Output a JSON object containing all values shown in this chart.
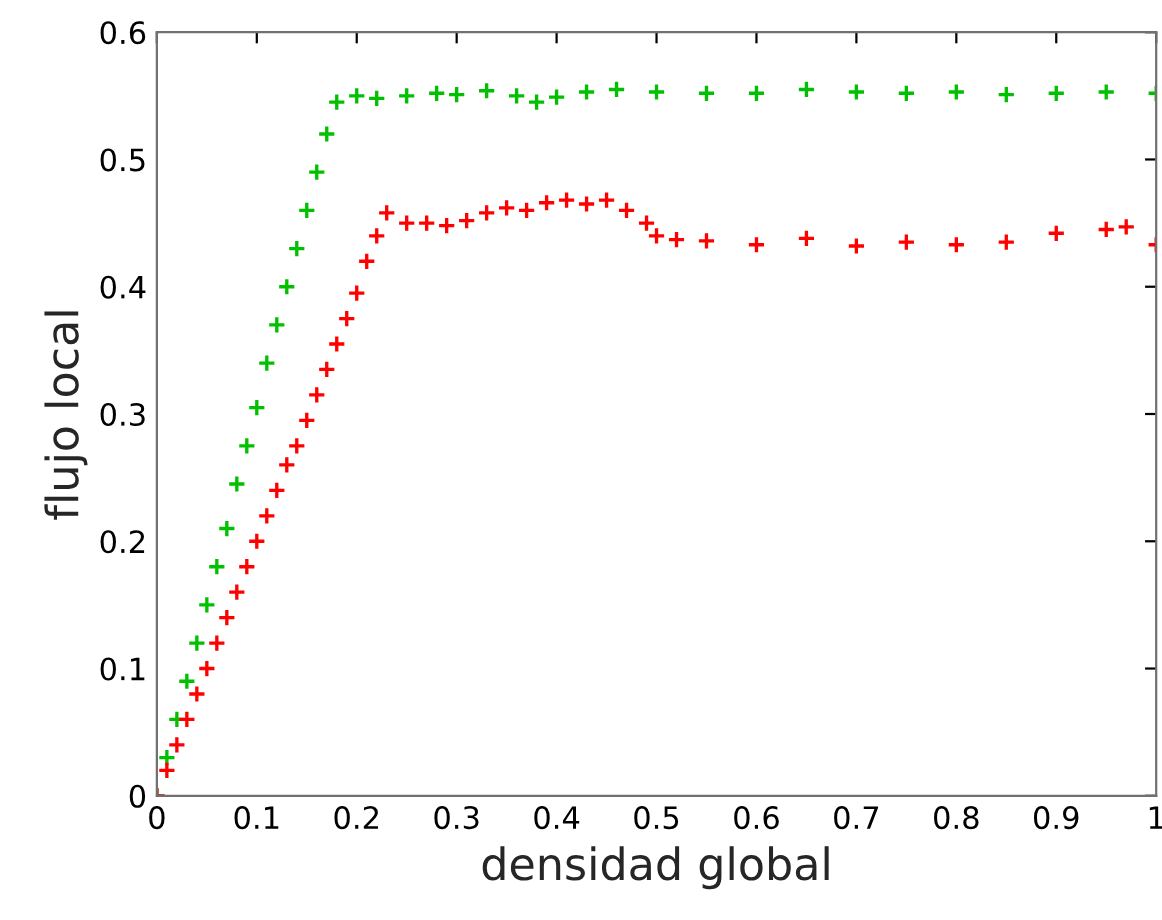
{
  "chart_data": {
    "type": "scatter",
    "xlabel": "densidad global",
    "ylabel": "flujo local",
    "xlim": [
      0,
      1
    ],
    "ylim": [
      0,
      0.6
    ],
    "xticks": [
      0,
      0.1,
      0.2,
      0.3,
      0.4,
      0.5,
      0.6,
      0.7,
      0.8,
      0.9,
      1
    ],
    "yticks": [
      0,
      0.1,
      0.2,
      0.3,
      0.4,
      0.5,
      0.6
    ],
    "grid": false,
    "legend": false,
    "series": [
      {
        "color": "#00c000",
        "marker": "cross",
        "x": [
          0,
          0.01,
          0.02,
          0.03,
          0.04,
          0.05,
          0.06,
          0.07,
          0.08,
          0.09,
          0.1,
          0.11,
          0.12,
          0.13,
          0.14,
          0.15,
          0.16,
          0.17,
          0.18,
          0.2,
          0.22,
          0.25,
          0.28,
          0.3,
          0.33,
          0.36,
          0.38,
          0.4,
          0.43,
          0.46,
          0.5,
          0.55,
          0.6,
          0.65,
          0.7,
          0.75,
          0.8,
          0.85,
          0.9,
          0.95,
          1
        ],
        "values": [
          0,
          0.03,
          0.06,
          0.09,
          0.12,
          0.15,
          0.18,
          0.21,
          0.245,
          0.275,
          0.305,
          0.34,
          0.37,
          0.4,
          0.43,
          0.46,
          0.49,
          0.52,
          0.545,
          0.55,
          0.548,
          0.55,
          0.552,
          0.551,
          0.554,
          0.55,
          0.545,
          0.549,
          0.553,
          0.555,
          0.553,
          0.552,
          0.552,
          0.555,
          0.553,
          0.552,
          0.553,
          0.551,
          0.552,
          0.553,
          0.552
        ]
      },
      {
        "color": "#ff0000",
        "marker": "cross",
        "x": [
          0,
          0.01,
          0.02,
          0.03,
          0.04,
          0.05,
          0.06,
          0.07,
          0.08,
          0.09,
          0.1,
          0.11,
          0.12,
          0.13,
          0.14,
          0.15,
          0.16,
          0.17,
          0.18,
          0.19,
          0.2,
          0.21,
          0.22,
          0.23,
          0.25,
          0.27,
          0.29,
          0.31,
          0.33,
          0.35,
          0.37,
          0.39,
          0.41,
          0.43,
          0.45,
          0.47,
          0.49,
          0.5,
          0.52,
          0.55,
          0.6,
          0.65,
          0.7,
          0.75,
          0.8,
          0.85,
          0.9,
          0.95,
          0.97,
          1
        ],
        "values": [
          0,
          0.02,
          0.04,
          0.06,
          0.08,
          0.1,
          0.12,
          0.14,
          0.16,
          0.18,
          0.2,
          0.22,
          0.24,
          0.26,
          0.275,
          0.295,
          0.315,
          0.335,
          0.355,
          0.375,
          0.395,
          0.42,
          0.44,
          0.458,
          0.45,
          0.45,
          0.448,
          0.452,
          0.458,
          0.462,
          0.46,
          0.466,
          0.468,
          0.465,
          0.468,
          0.46,
          0.45,
          0.44,
          0.437,
          0.436,
          0.433,
          0.438,
          0.432,
          0.435,
          0.433,
          0.435,
          0.442,
          0.445,
          0.447,
          0.433
        ]
      }
    ]
  }
}
